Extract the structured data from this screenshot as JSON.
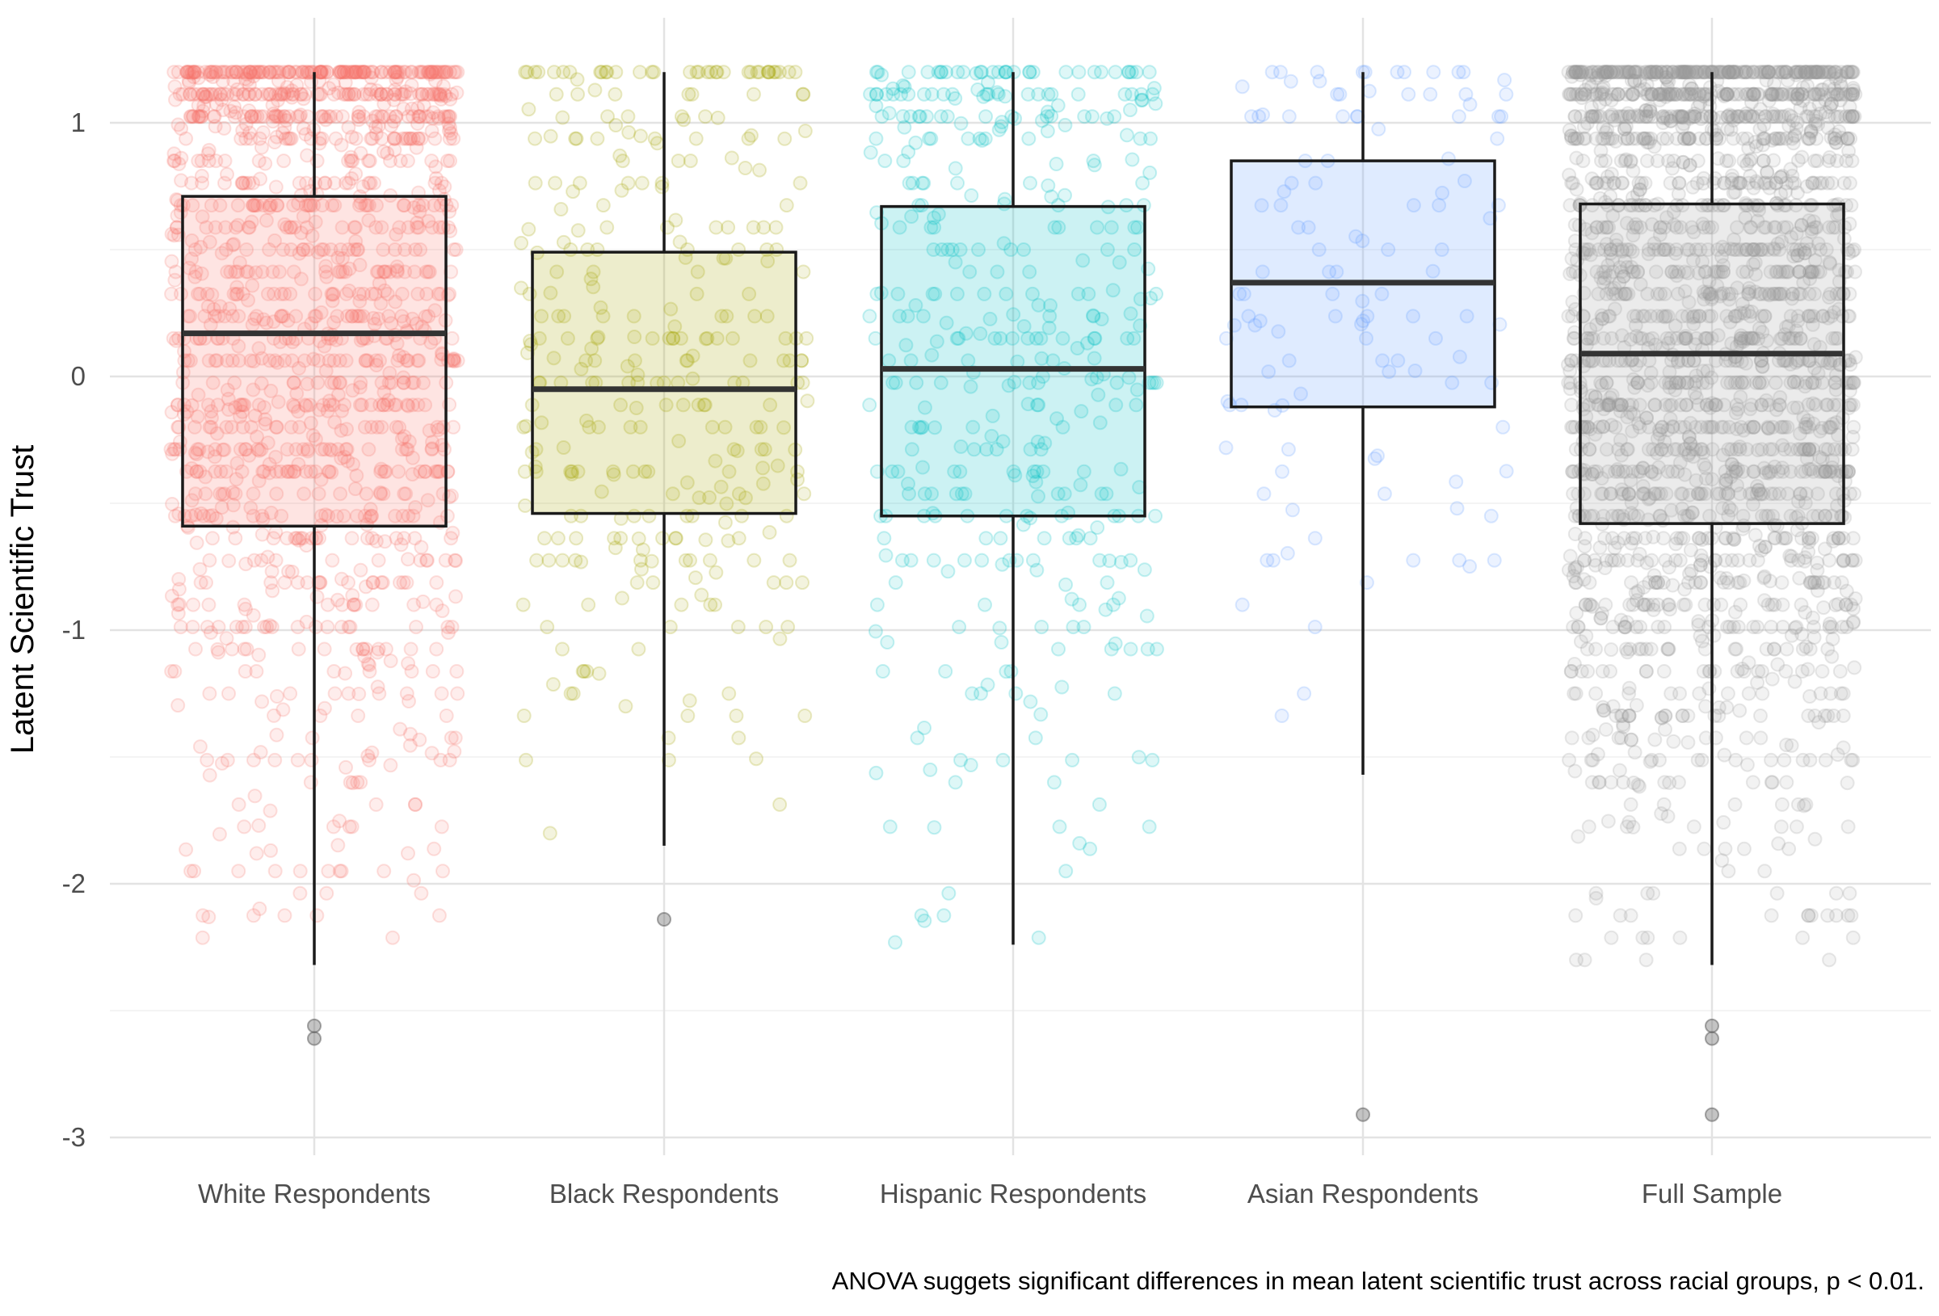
{
  "chart_data": {
    "type": "boxplot",
    "ylabel": "Latent Scientific Trust",
    "xlabel": "",
    "caption": "ANOVA suggets significant differences in mean latent scientific trust across racial groups, p < 0.01.",
    "ylim": [
      -3.08,
      1.4
    ],
    "yticks": [
      -3,
      -2,
      -1,
      0,
      1
    ],
    "ytick_labels": [
      "-3",
      "-2",
      "-1",
      "0",
      "1"
    ],
    "grid": true,
    "categories": [
      "White Respondents",
      "Black Respondents",
      "Hispanic Respondents",
      "Asian Respondents",
      "Full Sample"
    ],
    "colors": [
      "#F8766D",
      "#A3A500",
      "#00BFC4",
      "#619CFF",
      "#999999"
    ],
    "boxes": [
      {
        "category": "White Respondents",
        "whisker_low": -2.32,
        "q1": -0.59,
        "median": 0.17,
        "q3": 0.71,
        "whisker_high": 1.2,
        "outliers": [
          -2.56,
          -2.61
        ],
        "jitter_count": 1400
      },
      {
        "category": "Black Respondents",
        "whisker_low": -1.85,
        "q1": -0.54,
        "median": -0.05,
        "q3": 0.49,
        "whisker_high": 1.2,
        "outliers": [
          -2.14
        ],
        "jitter_count": 330
      },
      {
        "category": "Hispanic Respondents",
        "whisker_low": -2.24,
        "q1": -0.55,
        "median": 0.03,
        "q3": 0.67,
        "whisker_high": 1.2,
        "outliers": [],
        "jitter_count": 420
      },
      {
        "category": "Asian Respondents",
        "whisker_low": -1.57,
        "q1": -0.12,
        "median": 0.37,
        "q3": 0.85,
        "whisker_high": 1.2,
        "outliers": [
          -2.91
        ],
        "jitter_count": 120
      },
      {
        "category": "Full Sample",
        "whisker_low": -2.32,
        "q1": -0.58,
        "median": 0.09,
        "q3": 0.68,
        "whisker_high": 1.2,
        "outliers": [
          -2.56,
          -2.61,
          -2.91
        ],
        "jitter_count": 2300
      }
    ]
  }
}
